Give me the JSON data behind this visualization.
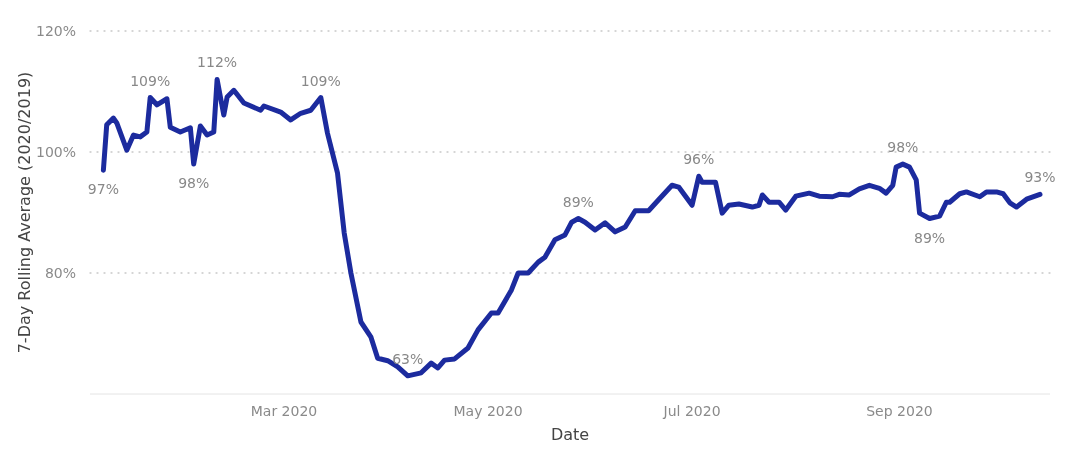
{
  "chart_data": {
    "type": "line",
    "xlabel": "Date",
    "ylabel": "7-Day Rolling Average (2020/2019)",
    "x": [
      "2020-01-07",
      "2020-01-08",
      "2020-01-10",
      "2020-01-11",
      "2020-01-14",
      "2020-01-16",
      "2020-01-18",
      "2020-01-20",
      "2020-01-21",
      "2020-01-23",
      "2020-01-26",
      "2020-01-27",
      "2020-01-30",
      "2020-02-02",
      "2020-02-03",
      "2020-02-05",
      "2020-02-07",
      "2020-02-09",
      "2020-02-10",
      "2020-02-12",
      "2020-02-13",
      "2020-02-15",
      "2020-02-18",
      "2020-02-23",
      "2020-02-24",
      "2020-02-29",
      "2020-03-03",
      "2020-03-06",
      "2020-03-09",
      "2020-03-12",
      "2020-03-14",
      "2020-03-17",
      "2020-03-19",
      "2020-03-21",
      "2020-03-24",
      "2020-03-27",
      "2020-03-29",
      "2020-04-01",
      "2020-04-04",
      "2020-04-07",
      "2020-04-11",
      "2020-04-14",
      "2020-04-16",
      "2020-04-18",
      "2020-04-21",
      "2020-04-25",
      "2020-04-28",
      "2020-05-02",
      "2020-05-04",
      "2020-05-08",
      "2020-05-10",
      "2020-05-13",
      "2020-05-16",
      "2020-05-18",
      "2020-05-21",
      "2020-05-24",
      "2020-05-26",
      "2020-05-28",
      "2020-05-30",
      "2020-06-02",
      "2020-06-05",
      "2020-06-08",
      "2020-06-11",
      "2020-06-14",
      "2020-06-18",
      "2020-06-21",
      "2020-06-25",
      "2020-06-27",
      "2020-07-01",
      "2020-07-03",
      "2020-07-04",
      "2020-07-08",
      "2020-07-10",
      "2020-07-12",
      "2020-07-15",
      "2020-07-19",
      "2020-07-21",
      "2020-07-22",
      "2020-07-24",
      "2020-07-27",
      "2020-07-29",
      "2020-08-01",
      "2020-08-05",
      "2020-08-08",
      "2020-08-12",
      "2020-08-14",
      "2020-08-17",
      "2020-08-20",
      "2020-08-23",
      "2020-08-26",
      "2020-08-28",
      "2020-08-30",
      "2020-08-31",
      "2020-09-02",
      "2020-09-04",
      "2020-09-06",
      "2020-09-07",
      "2020-09-10",
      "2020-09-13",
      "2020-09-15",
      "2020-09-16",
      "2020-09-19",
      "2020-09-21",
      "2020-09-25",
      "2020-09-27",
      "2020-09-30",
      "2020-10-02",
      "2020-10-04",
      "2020-10-06",
      "2020-10-09",
      "2020-10-13"
    ],
    "series": [
      {
        "color": "#1c2b9e",
        "values": [
          97,
          104.5,
          105.6,
          104.8,
          100.3,
          102.8,
          102.5,
          103.3,
          109,
          107.8,
          108.8,
          104.1,
          103.3,
          104,
          98,
          104.3,
          102.8,
          103.3,
          112,
          106.1,
          109.1,
          110.2,
          108.1,
          106.9,
          107.6,
          106.6,
          105.3,
          106.4,
          106.9,
          109,
          103.1,
          96.5,
          86.6,
          80,
          71.9,
          69.4,
          65.9,
          65.5,
          64.5,
          63,
          63.5,
          65.1,
          64.3,
          65.6,
          65.8,
          67.6,
          70.6,
          73.4,
          73.4,
          77.2,
          80,
          80,
          81.8,
          82.6,
          85.5,
          86.3,
          88.4,
          89,
          88.4,
          87.1,
          88.3,
          86.8,
          87.6,
          90.3,
          90.3,
          92.1,
          94.5,
          94.2,
          91.2,
          96,
          95,
          95,
          89.9,
          91.2,
          91.4,
          90.9,
          91.2,
          92.9,
          91.7,
          91.7,
          90.4,
          92.7,
          93.2,
          92.7,
          92.6,
          93,
          92.9,
          93.9,
          94.5,
          94,
          93.2,
          94.5,
          97.5,
          98,
          97.5,
          95.4,
          89.9,
          89,
          89.4,
          91.7,
          91.7,
          93.1,
          93.4,
          92.6,
          93.4,
          93.4,
          93.1,
          91.6,
          90.9,
          92.2,
          93
        ]
      }
    ],
    "xlim": [
      "2020-01-03",
      "2020-10-16"
    ],
    "xticks": [
      {
        "value": "2020-03-01",
        "label": "Mar 2020"
      },
      {
        "value": "2020-05-01",
        "label": "May 2020"
      },
      {
        "value": "2020-07-01",
        "label": "Jul 2020"
      },
      {
        "value": "2020-09-01",
        "label": "Sep 2020"
      }
    ],
    "ylim": [
      60,
      120
    ],
    "yticks": [
      {
        "value": 80,
        "label": "80%"
      },
      {
        "value": 100,
        "label": "100%"
      },
      {
        "value": 120,
        "label": "120%"
      }
    ],
    "grid": "y",
    "marker": "none",
    "line_style": "solid",
    "annotations": [
      {
        "text": "97%",
        "x": "2020-01-07",
        "y": 97
      },
      {
        "text": "109%",
        "x": "2020-01-21",
        "y": 109
      },
      {
        "text": "98%",
        "x": "2020-02-03",
        "y": 98
      },
      {
        "text": "112%",
        "x": "2020-02-10",
        "y": 112
      },
      {
        "text": "109%",
        "x": "2020-03-12",
        "y": 109
      },
      {
        "text": "63%",
        "x": "2020-04-07",
        "y": 63
      },
      {
        "text": "89%",
        "x": "2020-05-28",
        "y": 89
      },
      {
        "text": "96%",
        "x": "2020-07-03",
        "y": 96
      },
      {
        "text": "98%",
        "x": "2020-09-02",
        "y": 98
      },
      {
        "text": "89%",
        "x": "2020-09-10",
        "y": 89
      },
      {
        "text": "93%",
        "x": "2020-10-13",
        "y": 93
      }
    ]
  }
}
